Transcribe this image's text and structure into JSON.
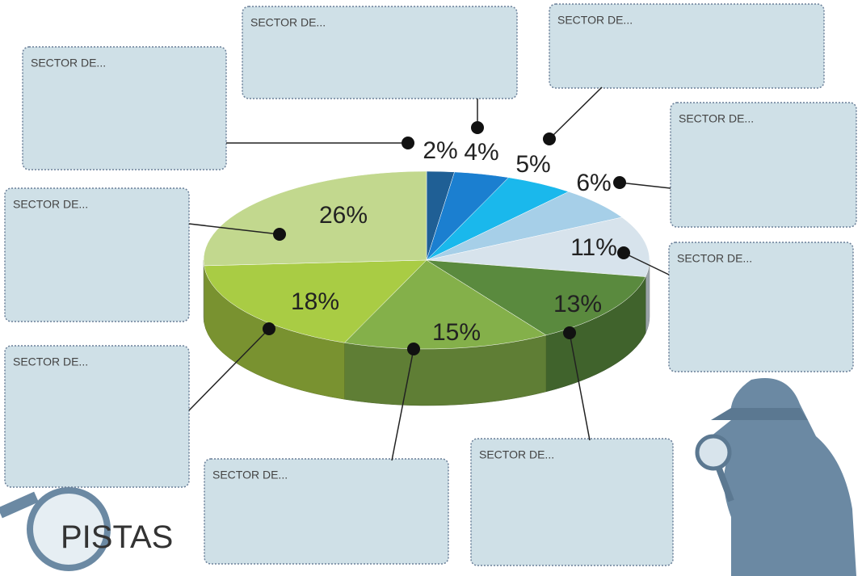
{
  "chart_data": {
    "type": "pie",
    "values": [
      2,
      4,
      5,
      6,
      11,
      13,
      15,
      18,
      26
    ],
    "value_labels": [
      "2%",
      "4%",
      "5%",
      "6%",
      "11%",
      "13%",
      "15%",
      "18%",
      "26%"
    ],
    "colors": [
      "#1f5f95",
      "#1b7fd0",
      "#1ab8ec",
      "#a6cfe8",
      "#d7e3ec",
      "#5a8a3e",
      "#84b04a",
      "#a9cc44",
      "#c2d88e"
    ]
  },
  "boxes": [
    "SECTOR DE...",
    "SECTOR DE...",
    "SECTOR DE...",
    "SECTOR DE...",
    "SECTOR DE...",
    "SECTOR DE...",
    "SECTOR DE...",
    "SECTOR DE...",
    "SECTOR DE..."
  ],
  "logo": "PISTAS"
}
